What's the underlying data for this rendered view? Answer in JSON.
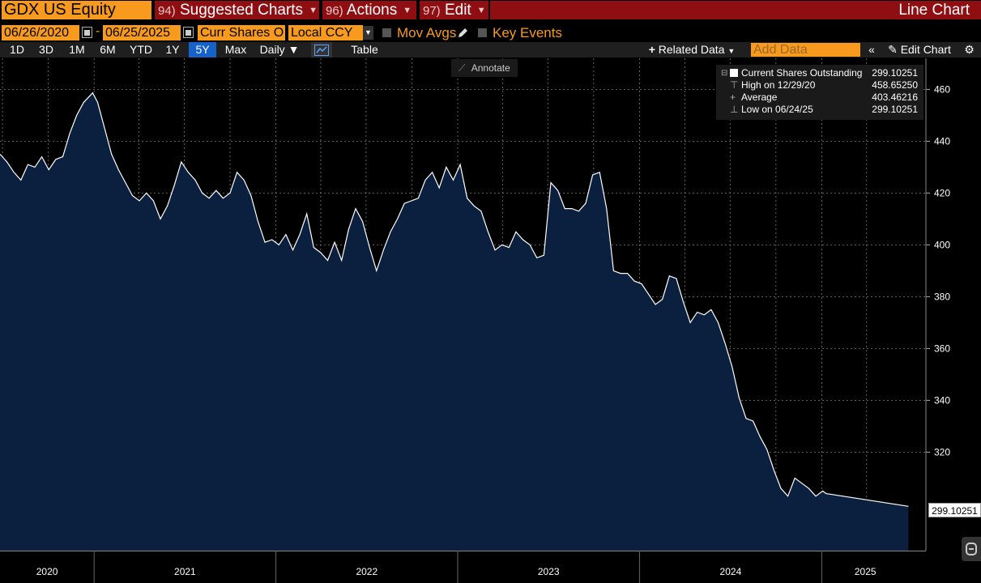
{
  "row1": {
    "ticker": "GDX US Equity",
    "menus": [
      {
        "num": "94)",
        "label": "Suggested Charts"
      },
      {
        "num": "96)",
        "label": "Actions"
      },
      {
        "num": "97)",
        "label": "Edit"
      }
    ],
    "title": "Line Chart"
  },
  "row2": {
    "start_date": "06/26/2020",
    "end_date": "06/25/2025",
    "field": "Curr Shares O",
    "currency": "Local CCY",
    "mov_avgs": "Mov Avgs",
    "key_events": "Key Events"
  },
  "toolbar": {
    "ranges": [
      "1D",
      "3D",
      "1M",
      "6M",
      "YTD",
      "1Y",
      "5Y",
      "Max"
    ],
    "active_range": "5Y",
    "frequency": "Daily ▼",
    "table": "Table",
    "related_data": "Related Data",
    "add_data_placeholder": "Add Data",
    "edit_chart": "Edit Chart"
  },
  "annotate": "Annotate",
  "legend": {
    "rows": [
      {
        "label": "Current Shares Outstanding",
        "value": "299.10251"
      },
      {
        "label": "High on 12/29/20",
        "value": "458.65250"
      },
      {
        "label": "Average",
        "value": "403.46216"
      },
      {
        "label": "Low on 06/24/25",
        "value": "299.10251"
      }
    ]
  },
  "last_price_label": "299.10251",
  "colors": {
    "orange": "#f79a1e",
    "menu_red": "#8f0e12",
    "area_fill": "#0b1f3f",
    "line": "#ffffff",
    "active_tab": "#1762c9"
  },
  "chart_data": {
    "type": "area",
    "ylim": [
      282,
      472
    ],
    "yticks": [
      320,
      340,
      360,
      380,
      400,
      420,
      440,
      460
    ],
    "xlabels": [
      "2020",
      "2021",
      "2022",
      "2023",
      "2024",
      "2025"
    ],
    "x_start": "2020-06-26",
    "x_end": "2025-06-25",
    "grid": true,
    "series": [
      {
        "name": "Current Shares Outstanding",
        "points": [
          [
            "2020-06-26",
            435
          ],
          [
            "2020-07-10",
            432
          ],
          [
            "2020-07-24",
            428
          ],
          [
            "2020-08-07",
            425
          ],
          [
            "2020-08-21",
            431
          ],
          [
            "2020-09-04",
            430
          ],
          [
            "2020-09-18",
            434
          ],
          [
            "2020-10-02",
            429
          ],
          [
            "2020-10-16",
            433
          ],
          [
            "2020-10-30",
            434
          ],
          [
            "2020-11-13",
            443
          ],
          [
            "2020-11-27",
            450
          ],
          [
            "2020-12-11",
            455
          ],
          [
            "2020-12-29",
            458.65
          ],
          [
            "2021-01-08",
            455
          ],
          [
            "2021-01-22",
            445
          ],
          [
            "2021-02-05",
            435
          ],
          [
            "2021-02-19",
            429
          ],
          [
            "2021-03-05",
            424
          ],
          [
            "2021-03-19",
            419
          ],
          [
            "2021-04-02",
            417
          ],
          [
            "2021-04-16",
            420
          ],
          [
            "2021-04-30",
            417
          ],
          [
            "2021-05-14",
            410
          ],
          [
            "2021-05-28",
            415
          ],
          [
            "2021-06-11",
            423
          ],
          [
            "2021-06-25",
            432
          ],
          [
            "2021-07-09",
            428
          ],
          [
            "2021-07-23",
            425
          ],
          [
            "2021-08-06",
            420
          ],
          [
            "2021-08-20",
            418
          ],
          [
            "2021-09-03",
            421
          ],
          [
            "2021-09-17",
            418
          ],
          [
            "2021-10-01",
            420
          ],
          [
            "2021-10-15",
            428
          ],
          [
            "2021-10-29",
            425
          ],
          [
            "2021-11-12",
            419
          ],
          [
            "2021-11-26",
            409
          ],
          [
            "2021-12-10",
            401
          ],
          [
            "2021-12-24",
            402
          ],
          [
            "2022-01-07",
            400
          ],
          [
            "2022-01-21",
            404
          ],
          [
            "2022-02-04",
            398
          ],
          [
            "2022-02-18",
            404
          ],
          [
            "2022-03-04",
            412
          ],
          [
            "2022-03-18",
            399
          ],
          [
            "2022-04-01",
            397
          ],
          [
            "2022-04-15",
            394
          ],
          [
            "2022-04-29",
            401
          ],
          [
            "2022-05-13",
            394
          ],
          [
            "2022-05-27",
            406
          ],
          [
            "2022-06-10",
            414
          ],
          [
            "2022-06-24",
            409
          ],
          [
            "2022-07-08",
            399
          ],
          [
            "2022-07-22",
            390
          ],
          [
            "2022-08-05",
            398
          ],
          [
            "2022-08-19",
            405
          ],
          [
            "2022-09-02",
            410
          ],
          [
            "2022-09-16",
            416
          ],
          [
            "2022-09-30",
            417
          ],
          [
            "2022-10-14",
            418
          ],
          [
            "2022-10-28",
            425
          ],
          [
            "2022-11-11",
            428
          ],
          [
            "2022-11-25",
            422
          ],
          [
            "2022-12-09",
            430
          ],
          [
            "2022-12-23",
            425
          ],
          [
            "2023-01-06",
            431
          ],
          [
            "2023-01-20",
            418
          ],
          [
            "2023-02-03",
            415
          ],
          [
            "2023-02-17",
            413
          ],
          [
            "2023-03-03",
            405
          ],
          [
            "2023-03-17",
            398
          ],
          [
            "2023-03-31",
            400
          ],
          [
            "2023-04-14",
            399
          ],
          [
            "2023-04-28",
            405
          ],
          [
            "2023-05-12",
            402
          ],
          [
            "2023-05-26",
            400
          ],
          [
            "2023-06-09",
            395
          ],
          [
            "2023-06-23",
            396
          ],
          [
            "2023-07-07",
            424
          ],
          [
            "2023-07-21",
            421
          ],
          [
            "2023-08-04",
            414
          ],
          [
            "2023-08-18",
            414
          ],
          [
            "2023-09-01",
            413
          ],
          [
            "2023-09-15",
            416
          ],
          [
            "2023-09-29",
            427
          ],
          [
            "2023-10-13",
            428
          ],
          [
            "2023-10-27",
            414
          ],
          [
            "2023-11-10",
            390
          ],
          [
            "2023-11-24",
            389
          ],
          [
            "2023-12-08",
            389
          ],
          [
            "2023-12-22",
            386
          ],
          [
            "2024-01-05",
            385
          ],
          [
            "2024-01-19",
            381
          ],
          [
            "2024-02-02",
            377
          ],
          [
            "2024-02-16",
            379
          ],
          [
            "2024-03-01",
            388
          ],
          [
            "2024-03-15",
            387
          ],
          [
            "2024-03-29",
            378
          ],
          [
            "2024-04-12",
            370
          ],
          [
            "2024-04-26",
            374
          ],
          [
            "2024-05-10",
            373
          ],
          [
            "2024-05-24",
            375
          ],
          [
            "2024-06-07",
            370
          ],
          [
            "2024-06-21",
            362
          ],
          [
            "2024-07-05",
            353
          ],
          [
            "2024-07-19",
            341
          ],
          [
            "2024-08-02",
            333
          ],
          [
            "2024-08-16",
            332
          ],
          [
            "2024-08-30",
            326
          ],
          [
            "2024-09-13",
            321
          ],
          [
            "2024-09-27",
            313
          ],
          [
            "2024-10-11",
            306
          ],
          [
            "2024-10-25",
            303
          ],
          [
            "2024-11-08",
            310
          ],
          [
            "2024-11-22",
            308
          ],
          [
            "2024-12-06",
            306
          ],
          [
            "2024-12-20",
            303
          ],
          [
            "2025-01-03",
            305
          ],
          [
            "2025-01-10",
            304
          ],
          [
            "2025-06-24",
            299.1
          ]
        ]
      }
    ]
  }
}
